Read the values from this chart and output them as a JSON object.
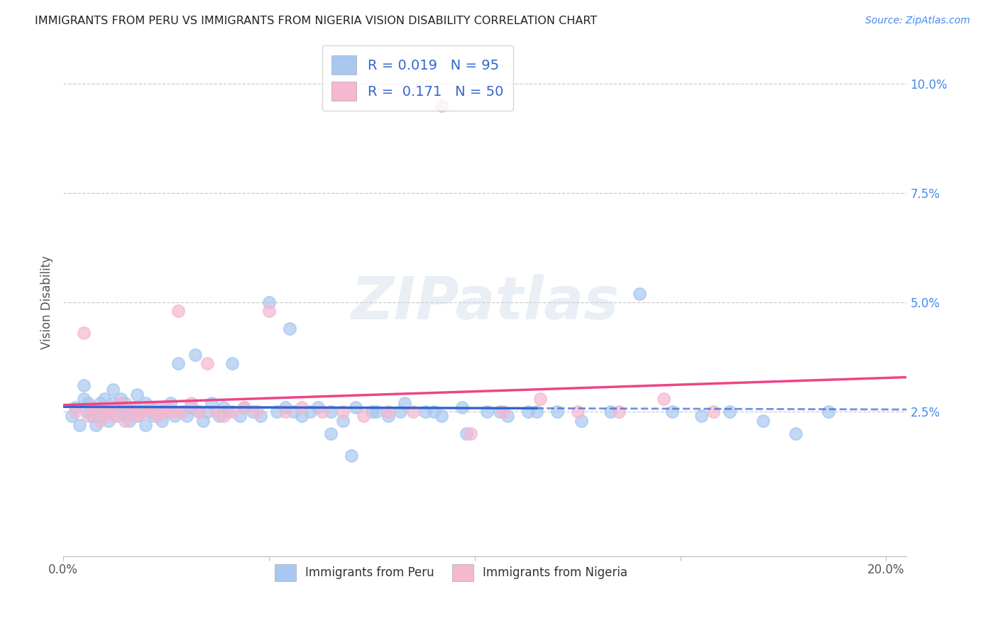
{
  "title": "IMMIGRANTS FROM PERU VS IMMIGRANTS FROM NIGERIA VISION DISABILITY CORRELATION CHART",
  "source": "Source: ZipAtlas.com",
  "ylabel": "Vision Disability",
  "xlim": [
    0.0,
    0.205
  ],
  "ylim": [
    -0.008,
    0.108
  ],
  "peru_color": "#a8c8f0",
  "nigeria_color": "#f4b8d0",
  "peru_R": 0.019,
  "peru_N": 95,
  "nigeria_R": 0.171,
  "nigeria_N": 50,
  "trend_peru_color": "#3366cc",
  "trend_nigeria_color": "#ee4488",
  "legend_label_peru": "Immigrants from Peru",
  "legend_label_nigeria": "Immigrants from Nigeria",
  "peru_x": [
    0.002,
    0.003,
    0.004,
    0.005,
    0.005,
    0.006,
    0.006,
    0.007,
    0.007,
    0.008,
    0.008,
    0.009,
    0.009,
    0.01,
    0.01,
    0.011,
    0.011,
    0.012,
    0.012,
    0.013,
    0.013,
    0.014,
    0.014,
    0.015,
    0.015,
    0.016,
    0.016,
    0.017,
    0.018,
    0.018,
    0.019,
    0.02,
    0.02,
    0.021,
    0.022,
    0.023,
    0.024,
    0.025,
    0.026,
    0.027,
    0.028,
    0.029,
    0.03,
    0.031,
    0.032,
    0.033,
    0.034,
    0.035,
    0.036,
    0.038,
    0.039,
    0.04,
    0.041,
    0.043,
    0.044,
    0.046,
    0.048,
    0.05,
    0.052,
    0.054,
    0.056,
    0.058,
    0.062,
    0.065,
    0.068,
    0.071,
    0.075,
    0.079,
    0.083,
    0.088,
    0.092,
    0.097,
    0.103,
    0.108,
    0.113,
    0.12,
    0.126,
    0.133,
    0.14,
    0.148,
    0.155,
    0.162,
    0.17,
    0.178,
    0.186,
    0.055,
    0.06,
    0.065,
    0.07,
    0.076,
    0.082,
    0.09,
    0.098,
    0.106,
    0.115
  ],
  "peru_y": [
    0.024,
    0.026,
    0.022,
    0.028,
    0.031,
    0.025,
    0.027,
    0.024,
    0.026,
    0.022,
    0.025,
    0.027,
    0.024,
    0.026,
    0.028,
    0.023,
    0.025,
    0.027,
    0.03,
    0.024,
    0.026,
    0.025,
    0.028,
    0.024,
    0.027,
    0.025,
    0.023,
    0.026,
    0.024,
    0.029,
    0.025,
    0.027,
    0.022,
    0.025,
    0.024,
    0.026,
    0.023,
    0.025,
    0.027,
    0.024,
    0.036,
    0.025,
    0.024,
    0.026,
    0.038,
    0.025,
    0.023,
    0.025,
    0.027,
    0.024,
    0.026,
    0.025,
    0.036,
    0.024,
    0.026,
    0.025,
    0.024,
    0.05,
    0.025,
    0.026,
    0.025,
    0.024,
    0.026,
    0.025,
    0.023,
    0.026,
    0.025,
    0.024,
    0.027,
    0.025,
    0.024,
    0.026,
    0.025,
    0.024,
    0.025,
    0.025,
    0.023,
    0.025,
    0.052,
    0.025,
    0.024,
    0.025,
    0.023,
    0.02,
    0.025,
    0.044,
    0.025,
    0.02,
    0.015,
    0.025,
    0.025,
    0.025,
    0.02,
    0.025,
    0.025
  ],
  "nigeria_x": [
    0.003,
    0.005,
    0.006,
    0.007,
    0.008,
    0.009,
    0.01,
    0.011,
    0.012,
    0.013,
    0.014,
    0.015,
    0.016,
    0.017,
    0.018,
    0.019,
    0.02,
    0.021,
    0.022,
    0.023,
    0.024,
    0.025,
    0.026,
    0.027,
    0.028,
    0.029,
    0.031,
    0.033,
    0.035,
    0.037,
    0.039,
    0.041,
    0.044,
    0.047,
    0.05,
    0.054,
    0.058,
    0.063,
    0.068,
    0.073,
    0.079,
    0.085,
    0.092,
    0.099,
    0.107,
    0.116,
    0.125,
    0.135,
    0.146,
    0.158
  ],
  "nigeria_y": [
    0.025,
    0.043,
    0.024,
    0.026,
    0.025,
    0.023,
    0.025,
    0.026,
    0.024,
    0.025,
    0.027,
    0.023,
    0.025,
    0.026,
    0.024,
    0.025,
    0.025,
    0.026,
    0.025,
    0.024,
    0.025,
    0.026,
    0.025,
    0.025,
    0.048,
    0.025,
    0.027,
    0.025,
    0.036,
    0.025,
    0.024,
    0.025,
    0.026,
    0.025,
    0.048,
    0.025,
    0.026,
    0.025,
    0.025,
    0.024,
    0.025,
    0.025,
    0.095,
    0.02,
    0.025,
    0.028,
    0.025,
    0.025,
    0.028,
    0.025
  ]
}
